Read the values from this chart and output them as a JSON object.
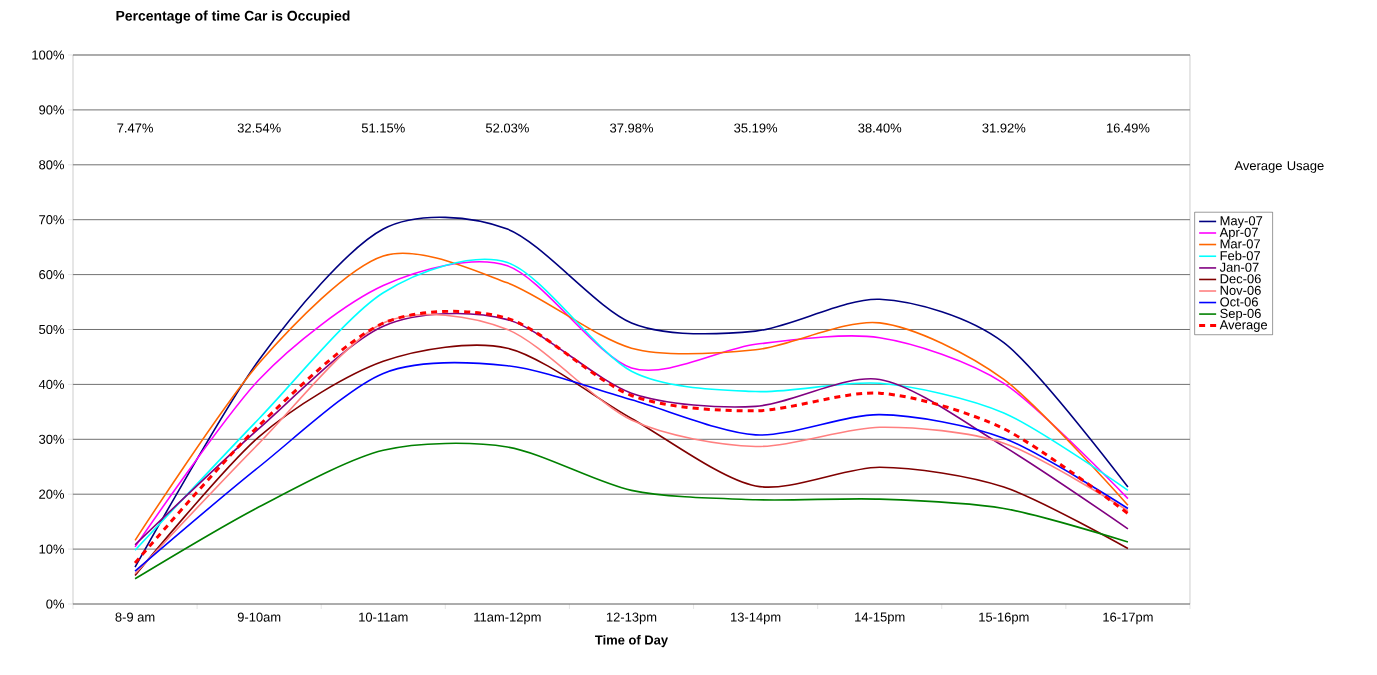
{
  "chart_data": {
    "type": "line",
    "title": "Percentage of time Car is Occupied",
    "xlabel": "Time of Day",
    "legend_title": "Average Usage",
    "categories": [
      "8-9 am",
      "9-10am",
      "10-11am",
      "11am-12pm",
      "12-13pm",
      "13-14pm",
      "14-15pm",
      "15-16pm",
      "16-17pm"
    ],
    "ylim": [
      0,
      100
    ],
    "yticks": [
      {
        "value": 0,
        "label": "0%"
      },
      {
        "value": 10,
        "label": "10%"
      },
      {
        "value": 20,
        "label": "20%"
      },
      {
        "value": 30,
        "label": "30%"
      },
      {
        "value": 40,
        "label": "40%"
      },
      {
        "value": 50,
        "label": "50%"
      },
      {
        "value": 60,
        "label": "60%"
      },
      {
        "value": 70,
        "label": "70%"
      },
      {
        "value": 80,
        "label": "80%"
      },
      {
        "value": 90,
        "label": "90%"
      },
      {
        "value": 100,
        "label": "100%"
      }
    ],
    "grid": "y",
    "legend": "right",
    "marker": "none",
    "annotations": [
      "7.47%",
      "32.54%",
      "51.15%",
      "52.03%",
      "37.98%",
      "35.19%",
      "38.40%",
      "31.92%",
      "16.49%"
    ],
    "series": [
      {
        "name": "May-07",
        "color": "#000080",
        "values": [
          6.7,
          44.5,
          68.3,
          68.3,
          51.2,
          49.7,
          55.5,
          47.6,
          21.3
        ]
      },
      {
        "name": "Apr-07",
        "color": "#ff00ff",
        "values": [
          10.4,
          40.9,
          58,
          61.6,
          43,
          47.3,
          48.5,
          40.2,
          19.2
        ]
      },
      {
        "name": "Mar-07",
        "color": "#ff6600",
        "values": [
          11.6,
          43.9,
          63.4,
          58.5,
          46.6,
          46.3,
          51.2,
          40.9,
          18
        ]
      },
      {
        "name": "Feb-07",
        "color": "#00ffff",
        "values": [
          9.8,
          33.8,
          56.7,
          62.2,
          42.4,
          38.7,
          40.2,
          34.8,
          20.7
        ]
      },
      {
        "name": "Jan-07",
        "color": "#800080",
        "values": [
          10.8,
          32,
          50.6,
          51.8,
          38.4,
          36,
          40.9,
          28.7,
          13.7
        ]
      },
      {
        "name": "Dec-06",
        "color": "#800000",
        "values": [
          5.2,
          30.5,
          44.2,
          46.6,
          33.8,
          21.5,
          24.9,
          21.3,
          10.1
        ]
      },
      {
        "name": "Nov-06",
        "color": "#ff8080",
        "values": [
          5.5,
          29.3,
          51.2,
          50,
          33.5,
          28.7,
          32.2,
          29.3,
          17
        ]
      },
      {
        "name": "Oct-06",
        "color": "#0000ff",
        "values": [
          6,
          25,
          42,
          43.4,
          37.2,
          30.8,
          34.5,
          30.2,
          17.4
        ]
      },
      {
        "name": "Sep-06",
        "color": "#008000",
        "values": [
          4.6,
          17.7,
          28,
          28.6,
          20.7,
          19,
          19.1,
          17.4,
          11.3
        ]
      },
      {
        "name": "Average",
        "color": "#ff0000",
        "line_style": "dashed",
        "values": [
          7.47,
          32.54,
          51.15,
          52.03,
          37.98,
          35.19,
          38.4,
          31.92,
          16.49
        ]
      }
    ]
  }
}
